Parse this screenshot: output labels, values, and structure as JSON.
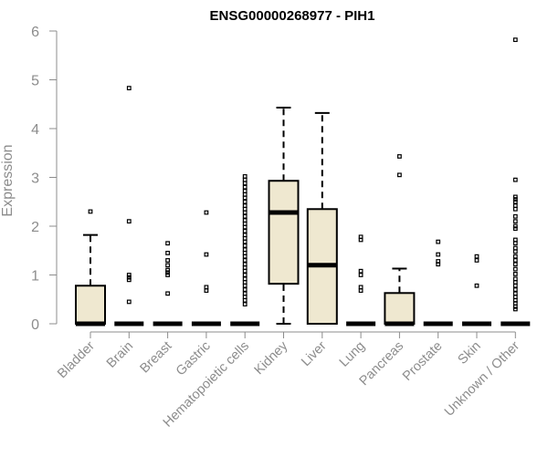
{
  "chart_data": {
    "type": "box",
    "title": "ENSG00000268977 - PIH1",
    "xlabel": "",
    "ylabel": "Expression",
    "ylim": [
      0,
      6
    ],
    "yticks": [
      0,
      1,
      2,
      3,
      4,
      5,
      6
    ],
    "categories": [
      "Bladder",
      "Brain",
      "Breast",
      "Gastric",
      "Hematopoietic cells",
      "Kidney",
      "Liver",
      "Lung",
      "Pancreas",
      "Prostate",
      "Skin",
      "Unknown / Other"
    ],
    "fill_color": "#efe8d0",
    "boxes": [
      {
        "category": "Bladder",
        "q1": 0,
        "median": 0,
        "q3": 0.78,
        "whisker_low": 0,
        "whisker_high": 1.82,
        "outliers": [
          2.3
        ]
      },
      {
        "category": "Brain",
        "q1": 0,
        "median": 0,
        "q3": 0,
        "whisker_low": 0,
        "whisker_high": 0,
        "outliers": [
          4.83,
          2.1,
          1.0,
          0.95,
          0.9,
          0.45
        ]
      },
      {
        "category": "Breast",
        "q1": 0,
        "median": 0,
        "q3": 0,
        "whisker_low": 0,
        "whisker_high": 0,
        "outliers": [
          1.65,
          1.45,
          1.3,
          1.2,
          1.1,
          1.05,
          1.0,
          0.62
        ]
      },
      {
        "category": "Gastric",
        "q1": 0,
        "median": 0,
        "q3": 0,
        "whisker_low": 0,
        "whisker_high": 0,
        "outliers": [
          2.28,
          1.42,
          0.75,
          0.68
        ]
      },
      {
        "category": "Hematopoietic cells",
        "q1": 0,
        "median": 0,
        "q3": 0,
        "whisker_low": 0,
        "whisker_high": 0,
        "outliers": [
          3.02,
          2.95,
          2.88,
          2.8,
          2.72,
          2.65,
          2.58,
          2.5,
          2.42,
          2.35,
          2.28,
          2.2,
          2.12,
          2.05,
          1.98,
          1.9,
          1.82,
          1.75,
          1.68,
          1.6,
          1.52,
          1.45,
          1.38,
          1.3,
          1.22,
          1.15,
          1.08,
          1.0,
          0.92,
          0.85,
          0.78,
          0.7,
          0.62,
          0.55,
          0.48,
          0.4
        ]
      },
      {
        "category": "Kidney",
        "q1": 0.82,
        "median": 2.28,
        "q3": 2.93,
        "whisker_low": 0,
        "whisker_high": 4.43,
        "outliers": []
      },
      {
        "category": "Liver",
        "q1": 0,
        "median": 1.2,
        "q3": 2.35,
        "whisker_low": 0,
        "whisker_high": 4.32,
        "outliers": []
      },
      {
        "category": "Lung",
        "q1": 0,
        "median": 0,
        "q3": 0,
        "whisker_low": 0,
        "whisker_high": 0,
        "outliers": [
          1.78,
          1.72,
          1.08,
          1.0,
          0.75,
          0.68
        ]
      },
      {
        "category": "Pancreas",
        "q1": 0,
        "median": 0,
        "q3": 0.63,
        "whisker_low": 0,
        "whisker_high": 1.13,
        "outliers": [
          3.43,
          3.05
        ]
      },
      {
        "category": "Prostate",
        "q1": 0,
        "median": 0,
        "q3": 0,
        "whisker_low": 0,
        "whisker_high": 0,
        "outliers": [
          1.68,
          1.42,
          1.28,
          1.22
        ]
      },
      {
        "category": "Skin",
        "q1": 0,
        "median": 0,
        "q3": 0,
        "whisker_low": 0,
        "whisker_high": 0,
        "outliers": [
          1.38,
          1.3,
          0.78
        ]
      },
      {
        "category": "Unknown / Other",
        "q1": 0,
        "median": 0,
        "q3": 0,
        "whisker_low": 0,
        "whisker_high": 0,
        "outliers": [
          5.82,
          2.95,
          2.6,
          2.55,
          2.5,
          2.42,
          2.35,
          2.2,
          2.1,
          2.0,
          1.95,
          1.72,
          1.65,
          1.55,
          1.48,
          1.38,
          1.3,
          1.22,
          1.12,
          1.02,
          0.92,
          0.85,
          0.78,
          0.7,
          0.62,
          0.55,
          0.48,
          0.42,
          0.35,
          0.3
        ]
      }
    ]
  }
}
